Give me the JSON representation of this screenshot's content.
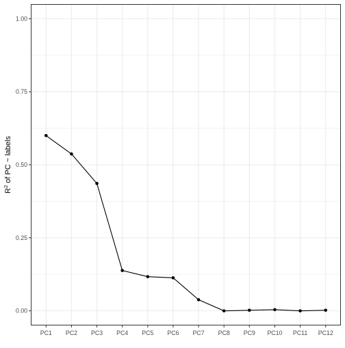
{
  "chart_data": {
    "type": "line",
    "title": "",
    "xlabel": "",
    "ylabel": {
      "prefix": "R",
      "superscript": "2",
      "suffix": " of PC ~ labels"
    },
    "categories": [
      "PC1",
      "PC2",
      "PC3",
      "PC4",
      "PC5",
      "PC6",
      "PC7",
      "PC8",
      "PC9",
      "PC10",
      "PC11",
      "PC12"
    ],
    "values": [
      0.6,
      0.537,
      0.436,
      0.138,
      0.117,
      0.113,
      0.038,
      0.0,
      0.002,
      0.004,
      0.0,
      0.002
    ],
    "ylim": [
      0,
      1
    ],
    "y_ticks": [
      0,
      0.25,
      0.5,
      0.75,
      1.0
    ],
    "y_tick_labels": [
      "0.00",
      "0.25",
      "0.50",
      "0.75",
      "1.00"
    ],
    "grid": true,
    "legend": "none",
    "markers": true,
    "colors": {
      "line": "#000000",
      "points": "#000000",
      "grid": "#ebebeb",
      "panel_border": "#333333",
      "tick_label": "#4d4d4d"
    }
  }
}
